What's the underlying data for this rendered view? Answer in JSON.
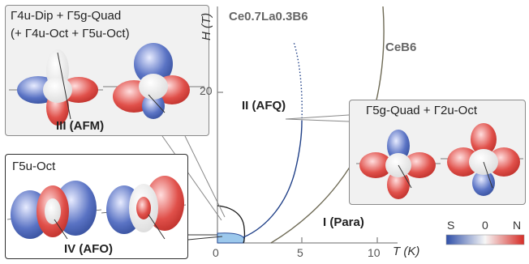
{
  "afm_panel": {
    "line1": "Γ4u-Dip + Γ5g-Quad",
    "line2": "(+ Γ4u-Oct + Γ5u-Oct)",
    "phase_label": "III (AFM)"
  },
  "afo_panel": {
    "title": "Γ5u-Oct",
    "phase_label": "IV (AFO)"
  },
  "afq_panel": {
    "title": "Γ5g-Quad + Γ2u-Oct"
  },
  "plot": {
    "y_axis_label": "H (T)",
    "x_axis_label": "T (K)",
    "y_tick_20": "20",
    "x_tick_0": "0",
    "x_tick_5": "5",
    "x_tick_10": "10",
    "material_1": "Ce0.7La0.3B6",
    "material_2": "CeB6",
    "phase_afq": "II (AFQ)",
    "phase_para": "I (Para)"
  },
  "colorbar": {
    "left": "S",
    "center": "0",
    "right": "N"
  },
  "colors": {
    "blue": "#3a55b0",
    "red": "#d83a34",
    "white": "#f4f4f4",
    "afq_boundary": "#1f3f87",
    "ceb6_boundary": "#6e6a55"
  }
}
